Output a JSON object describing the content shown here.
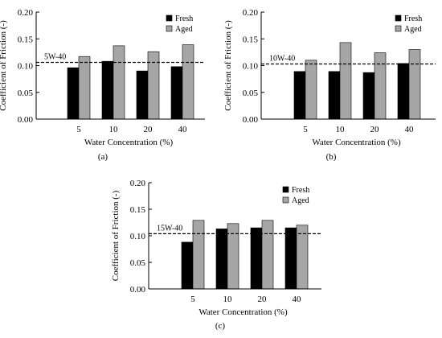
{
  "colors": {
    "fresh": "#000000",
    "aged": "#a6a6a6",
    "axis": "#000000",
    "reference": "#000000"
  },
  "chart_data": [
    {
      "type": "bar",
      "panel_label": "(a)",
      "categories": [
        "5",
        "10",
        "20",
        "40"
      ],
      "series": [
        {
          "name": "Fresh",
          "values": [
            0.096,
            0.108,
            0.09,
            0.098
          ]
        },
        {
          "name": "Aged",
          "values": [
            0.117,
            0.137,
            0.126,
            0.139
          ]
        }
      ],
      "reference_line": {
        "label": "5W-40",
        "value": 0.106
      },
      "xlabel": "Water Concentration (%)",
      "ylabel": "Coefficient of Friction (-)",
      "ylim": [
        0,
        0.2
      ],
      "yticks": [
        "0.00",
        "0.05",
        "0.10",
        "0.15",
        "0.20"
      ],
      "legend_position": "top-right",
      "grid": false
    },
    {
      "type": "bar",
      "panel_label": "(b)",
      "categories": [
        "5",
        "10",
        "20",
        "40"
      ],
      "series": [
        {
          "name": "Fresh",
          "values": [
            0.089,
            0.089,
            0.087,
            0.104
          ]
        },
        {
          "name": "Aged",
          "values": [
            0.11,
            0.143,
            0.124,
            0.13
          ]
        }
      ],
      "reference_line": {
        "label": "10W-40",
        "value": 0.103
      },
      "xlabel": "Water Concentration (%)",
      "ylabel": "Coefficient of Friction (-)",
      "ylim": [
        0,
        0.2
      ],
      "yticks": [
        "0.00",
        "0.05",
        "0.10",
        "0.15",
        "0.20"
      ],
      "legend_position": "top-right",
      "grid": false
    },
    {
      "type": "bar",
      "panel_label": "(c)",
      "categories": [
        "5",
        "10",
        "20",
        "40"
      ],
      "series": [
        {
          "name": "Fresh",
          "values": [
            0.088,
            0.113,
            0.115,
            0.115
          ]
        },
        {
          "name": "Aged",
          "values": [
            0.129,
            0.123,
            0.129,
            0.12
          ]
        }
      ],
      "reference_line": {
        "label": "15W-40",
        "value": 0.104
      },
      "xlabel": "Water Concentration (%)",
      "ylabel": "Coefficient of Friction (-)",
      "ylim": [
        0,
        0.2
      ],
      "yticks": [
        "0.00",
        "0.05",
        "0.10",
        "0.15",
        "0.20"
      ],
      "legend_position": "top-right",
      "grid": false
    }
  ]
}
